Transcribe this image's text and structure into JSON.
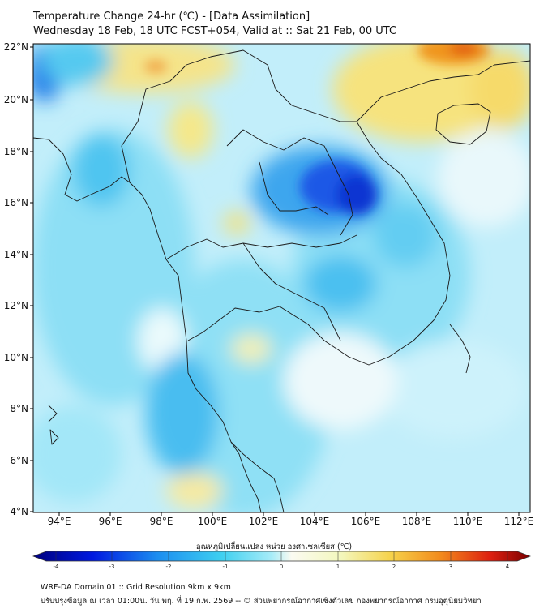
{
  "header": {
    "title": "Temperature Change 24-hr (℃) - [Data Assimilation]",
    "subtitle": "Wednesday 18 Feb, 18 UTC FCST+054, Valid at :: Sat 21 Feb, 00 UTC"
  },
  "map": {
    "lat_labels": [
      "22°N",
      "20°N",
      "18°N",
      "16°N",
      "14°N",
      "12°N",
      "10°N",
      "8°N",
      "6°N",
      "4°N"
    ],
    "lon_labels": [
      "94°E",
      "96°E",
      "98°E",
      "100°E",
      "102°E",
      "104°E",
      "106°E",
      "108°E",
      "110°E",
      "112°E"
    ],
    "lat_range": [
      4,
      22.2
    ],
    "lon_range": [
      93,
      112.5
    ]
  },
  "colorbar": {
    "label": "อุณหภูมิเปลี่ยนแปลง หน่วย องศาเซลเซียส (℃)",
    "ticks": [
      "-4",
      "-3",
      "-2",
      "-1",
      "0",
      "1",
      "2",
      "3",
      "4"
    ],
    "colors": [
      "#00007e",
      "#0019e0",
      "#1c8ef0",
      "#3fd0f0",
      "#a8ecf8",
      "#f3f7bc",
      "#f6d24a",
      "#f28a1c",
      "#dd2010",
      "#7a0000"
    ]
  },
  "footer": {
    "line1": "WRF-DA Domain 01 :: Grid Resolution 9km x 9km",
    "line2": "ปรับปรุงข้อมูล ณ เวลา 01:00น. วัน พฤ. ที่ 19 ก.พ. 2569 -- © ส่วนพยากรณ์อากาศเชิงตัวเลข กองพยากรณ์อากาศ กรมอุตุนิยมวิทยา"
  }
}
